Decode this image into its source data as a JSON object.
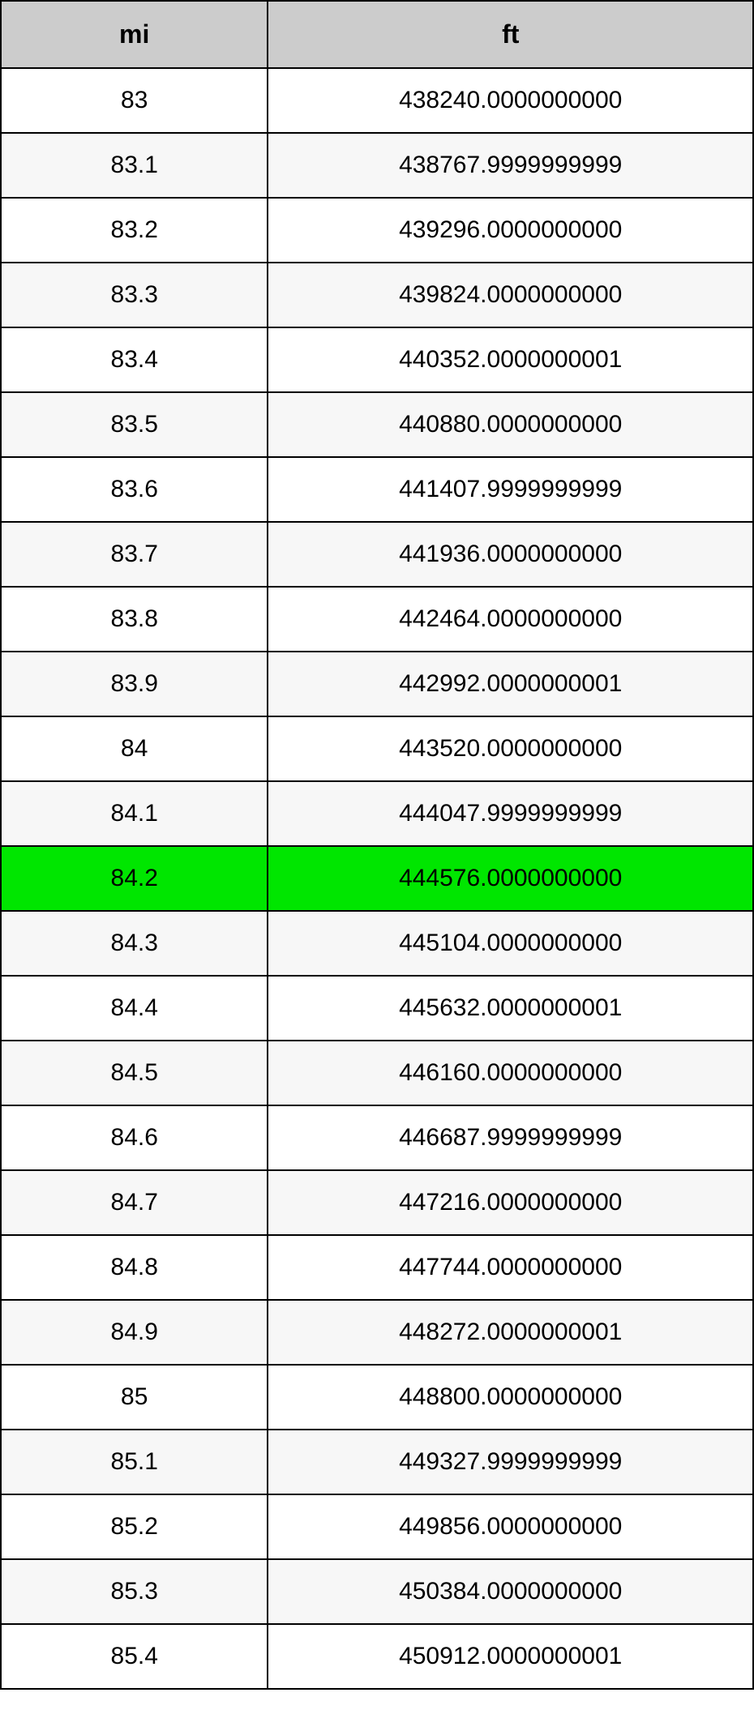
{
  "table": {
    "type": "table",
    "columns": [
      {
        "key": "mi",
        "label": "mi",
        "width_pct": 35.5,
        "align": "center"
      },
      {
        "key": "ft",
        "label": "ft",
        "width_pct": 64.5,
        "align": "center"
      }
    ],
    "header_bg": "#cccccc",
    "header_font_size": 32,
    "header_font_weight": "bold",
    "cell_font_size": 30,
    "border_color": "#000000",
    "border_width": 2,
    "row_bg_odd": "#ffffff",
    "row_bg_even": "#f7f7f7",
    "highlight_bg": "#00e600",
    "text_color": "#000000",
    "highlight_index": 12,
    "rows": [
      {
        "mi": "83",
        "ft": "438240.0000000000"
      },
      {
        "mi": "83.1",
        "ft": "438767.9999999999"
      },
      {
        "mi": "83.2",
        "ft": "439296.0000000000"
      },
      {
        "mi": "83.3",
        "ft": "439824.0000000000"
      },
      {
        "mi": "83.4",
        "ft": "440352.0000000001"
      },
      {
        "mi": "83.5",
        "ft": "440880.0000000000"
      },
      {
        "mi": "83.6",
        "ft": "441407.9999999999"
      },
      {
        "mi": "83.7",
        "ft": "441936.0000000000"
      },
      {
        "mi": "83.8",
        "ft": "442464.0000000000"
      },
      {
        "mi": "83.9",
        "ft": "442992.0000000001"
      },
      {
        "mi": "84",
        "ft": "443520.0000000000"
      },
      {
        "mi": "84.1",
        "ft": "444047.9999999999"
      },
      {
        "mi": "84.2",
        "ft": "444576.0000000000"
      },
      {
        "mi": "84.3",
        "ft": "445104.0000000000"
      },
      {
        "mi": "84.4",
        "ft": "445632.0000000001"
      },
      {
        "mi": "84.5",
        "ft": "446160.0000000000"
      },
      {
        "mi": "84.6",
        "ft": "446687.9999999999"
      },
      {
        "mi": "84.7",
        "ft": "447216.0000000000"
      },
      {
        "mi": "84.8",
        "ft": "447744.0000000000"
      },
      {
        "mi": "84.9",
        "ft": "448272.0000000001"
      },
      {
        "mi": "85",
        "ft": "448800.0000000000"
      },
      {
        "mi": "85.1",
        "ft": "449327.9999999999"
      },
      {
        "mi": "85.2",
        "ft": "449856.0000000000"
      },
      {
        "mi": "85.3",
        "ft": "450384.0000000000"
      },
      {
        "mi": "85.4",
        "ft": "450912.0000000001"
      }
    ]
  }
}
